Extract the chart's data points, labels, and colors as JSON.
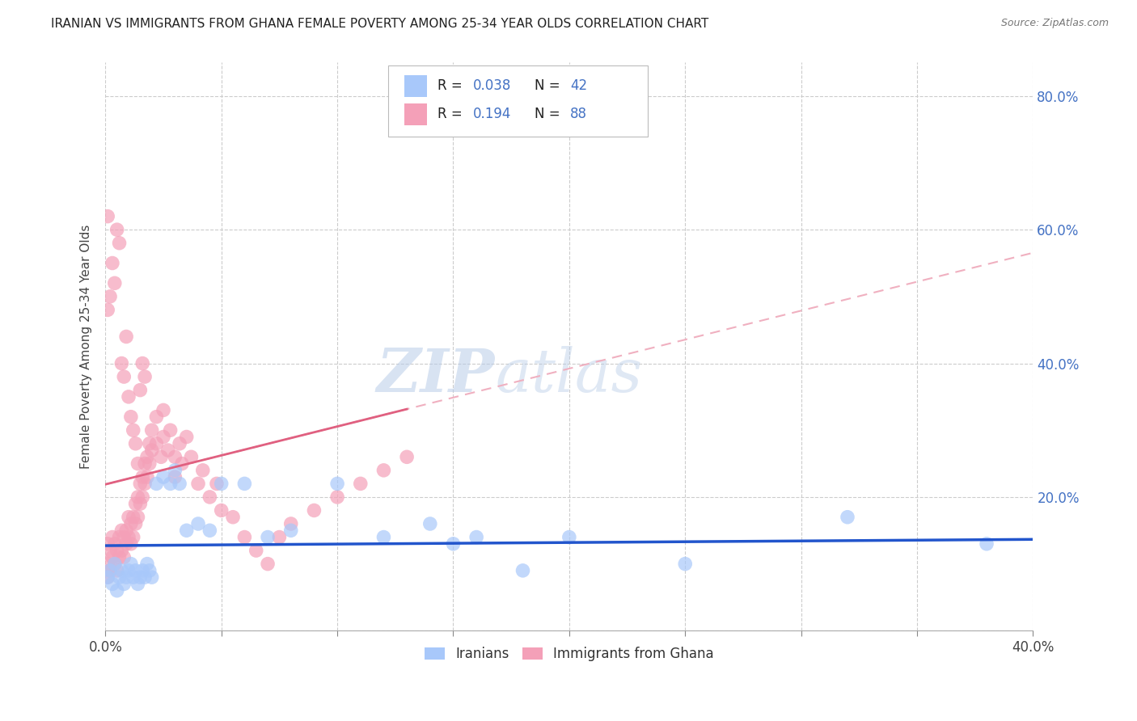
{
  "title": "IRANIAN VS IMMIGRANTS FROM GHANA FEMALE POVERTY AMONG 25-34 YEAR OLDS CORRELATION CHART",
  "source": "Source: ZipAtlas.com",
  "ylabel": "Female Poverty Among 25-34 Year Olds",
  "xlim": [
    0.0,
    0.4
  ],
  "ylim": [
    0.0,
    0.85
  ],
  "xticks": [
    0.0,
    0.05,
    0.1,
    0.15,
    0.2,
    0.25,
    0.3,
    0.35,
    0.4
  ],
  "xticklabels": [
    "0.0%",
    "",
    "",
    "",
    "",
    "",
    "",
    "",
    "40.0%"
  ],
  "yticks": [
    0.0,
    0.2,
    0.4,
    0.6,
    0.8
  ],
  "yticklabels": [
    "",
    "20.0%",
    "40.0%",
    "60.0%",
    "80.0%"
  ],
  "iranian_color": "#a8c8fa",
  "ghana_color": "#f4a0b8",
  "iranian_line_color": "#2255cc",
  "ghana_line_color": "#e06080",
  "ghana_line_color2": "#f0b0c0",
  "R_iranian": 0.038,
  "N_iranian": 42,
  "R_ghana": 0.194,
  "N_ghana": 88,
  "watermark": "ZIPatlas",
  "watermark_color": "#c8d8f0",
  "legend_label_iranian": "Iranians",
  "legend_label_ghana": "Immigrants from Ghana",
  "iranians_x": [
    0.001,
    0.002,
    0.003,
    0.004,
    0.005,
    0.006,
    0.007,
    0.008,
    0.009,
    0.01,
    0.011,
    0.012,
    0.013,
    0.014,
    0.015,
    0.016,
    0.017,
    0.018,
    0.019,
    0.02,
    0.022,
    0.025,
    0.028,
    0.03,
    0.032,
    0.035,
    0.04,
    0.045,
    0.05,
    0.06,
    0.07,
    0.08,
    0.1,
    0.12,
    0.14,
    0.15,
    0.16,
    0.18,
    0.2,
    0.25,
    0.32,
    0.38
  ],
  "iranians_y": [
    0.08,
    0.09,
    0.07,
    0.1,
    0.06,
    0.08,
    0.09,
    0.07,
    0.08,
    0.09,
    0.1,
    0.08,
    0.09,
    0.07,
    0.08,
    0.09,
    0.08,
    0.1,
    0.09,
    0.08,
    0.22,
    0.23,
    0.22,
    0.24,
    0.22,
    0.15,
    0.16,
    0.15,
    0.22,
    0.22,
    0.14,
    0.15,
    0.22,
    0.14,
    0.16,
    0.13,
    0.14,
    0.09,
    0.14,
    0.1,
    0.17,
    0.13
  ],
  "ghana_x": [
    0.001,
    0.001,
    0.001,
    0.002,
    0.002,
    0.003,
    0.003,
    0.004,
    0.004,
    0.005,
    0.005,
    0.006,
    0.006,
    0.007,
    0.007,
    0.008,
    0.008,
    0.009,
    0.009,
    0.01,
    0.01,
    0.011,
    0.011,
    0.012,
    0.012,
    0.013,
    0.013,
    0.014,
    0.014,
    0.015,
    0.015,
    0.016,
    0.016,
    0.017,
    0.017,
    0.018,
    0.018,
    0.019,
    0.019,
    0.02,
    0.02,
    0.022,
    0.022,
    0.024,
    0.025,
    0.025,
    0.027,
    0.028,
    0.03,
    0.03,
    0.032,
    0.033,
    0.035,
    0.037,
    0.04,
    0.042,
    0.045,
    0.048,
    0.05,
    0.055,
    0.06,
    0.065,
    0.07,
    0.075,
    0.08,
    0.09,
    0.1,
    0.11,
    0.12,
    0.13,
    0.001,
    0.001,
    0.002,
    0.003,
    0.004,
    0.005,
    0.006,
    0.007,
    0.008,
    0.009,
    0.01,
    0.011,
    0.012,
    0.013,
    0.014,
    0.015,
    0.016,
    0.017
  ],
  "ghana_y": [
    0.1,
    0.13,
    0.08,
    0.12,
    0.09,
    0.14,
    0.11,
    0.13,
    0.1,
    0.12,
    0.09,
    0.14,
    0.11,
    0.15,
    0.12,
    0.14,
    0.11,
    0.15,
    0.13,
    0.17,
    0.14,
    0.16,
    0.13,
    0.17,
    0.14,
    0.19,
    0.16,
    0.2,
    0.17,
    0.22,
    0.19,
    0.23,
    0.2,
    0.25,
    0.22,
    0.26,
    0.23,
    0.28,
    0.25,
    0.3,
    0.27,
    0.28,
    0.32,
    0.26,
    0.29,
    0.33,
    0.27,
    0.3,
    0.23,
    0.26,
    0.28,
    0.25,
    0.29,
    0.26,
    0.22,
    0.24,
    0.2,
    0.22,
    0.18,
    0.17,
    0.14,
    0.12,
    0.1,
    0.14,
    0.16,
    0.18,
    0.2,
    0.22,
    0.24,
    0.26,
    0.48,
    0.62,
    0.5,
    0.55,
    0.52,
    0.6,
    0.58,
    0.4,
    0.38,
    0.44,
    0.35,
    0.32,
    0.3,
    0.28,
    0.25,
    0.36,
    0.4,
    0.38
  ]
}
